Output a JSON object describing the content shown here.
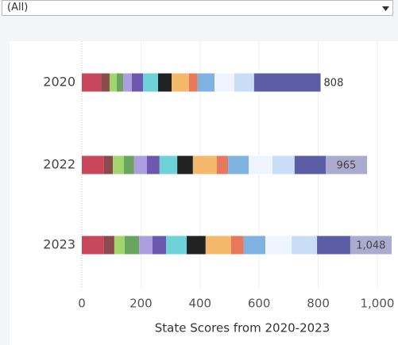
{
  "filter": {
    "value": "(All)"
  },
  "chart_data": {
    "type": "stacked-bar",
    "categories": [
      "2020",
      "2022",
      "2023"
    ],
    "series": [
      {
        "color": "#c8475a",
        "values": [
          65,
          75,
          75
        ]
      },
      {
        "color": "#8b4a4e",
        "values": [
          29,
          30,
          35
        ]
      },
      {
        "color": "#a3d56e",
        "values": [
          24,
          37,
          35
        ]
      },
      {
        "color": "#6aa55f",
        "values": [
          22,
          35,
          49
        ]
      },
      {
        "color": "#ab9fe0",
        "values": [
          29,
          43,
          45
        ]
      },
      {
        "color": "#6d58b0",
        "values": [
          38,
          43,
          46
        ]
      },
      {
        "color": "#6dd3d8",
        "values": [
          51,
          60,
          70
        ]
      },
      {
        "color": "#222222",
        "values": [
          46,
          53,
          64
        ]
      },
      {
        "color": "#f4b86b",
        "values": [
          59,
          81,
          86
        ]
      },
      {
        "color": "#e5795a",
        "values": [
          29,
          38,
          43
        ]
      },
      {
        "color": "#7fb2e0",
        "values": [
          57,
          70,
          73
        ]
      },
      {
        "color": "#eef5fe",
        "values": [
          67,
          80,
          89
        ]
      },
      {
        "color": "#c9def6",
        "values": [
          67,
          75,
          86
        ]
      },
      {
        "color": "#5b5ea6",
        "values": [
          225,
          245,
          252
        ]
      }
    ],
    "totals": [
      808,
      965,
      1048
    ],
    "total_labels": [
      "808",
      "965",
      "1,048"
    ],
    "xlabel": "State Scores from 2020-2023",
    "xlim": [
      0,
      1070
    ],
    "xticks": [
      0,
      200,
      400,
      600,
      800,
      {
        "value": 1000,
        "label": "1,000"
      }
    ],
    "grid": true
  }
}
